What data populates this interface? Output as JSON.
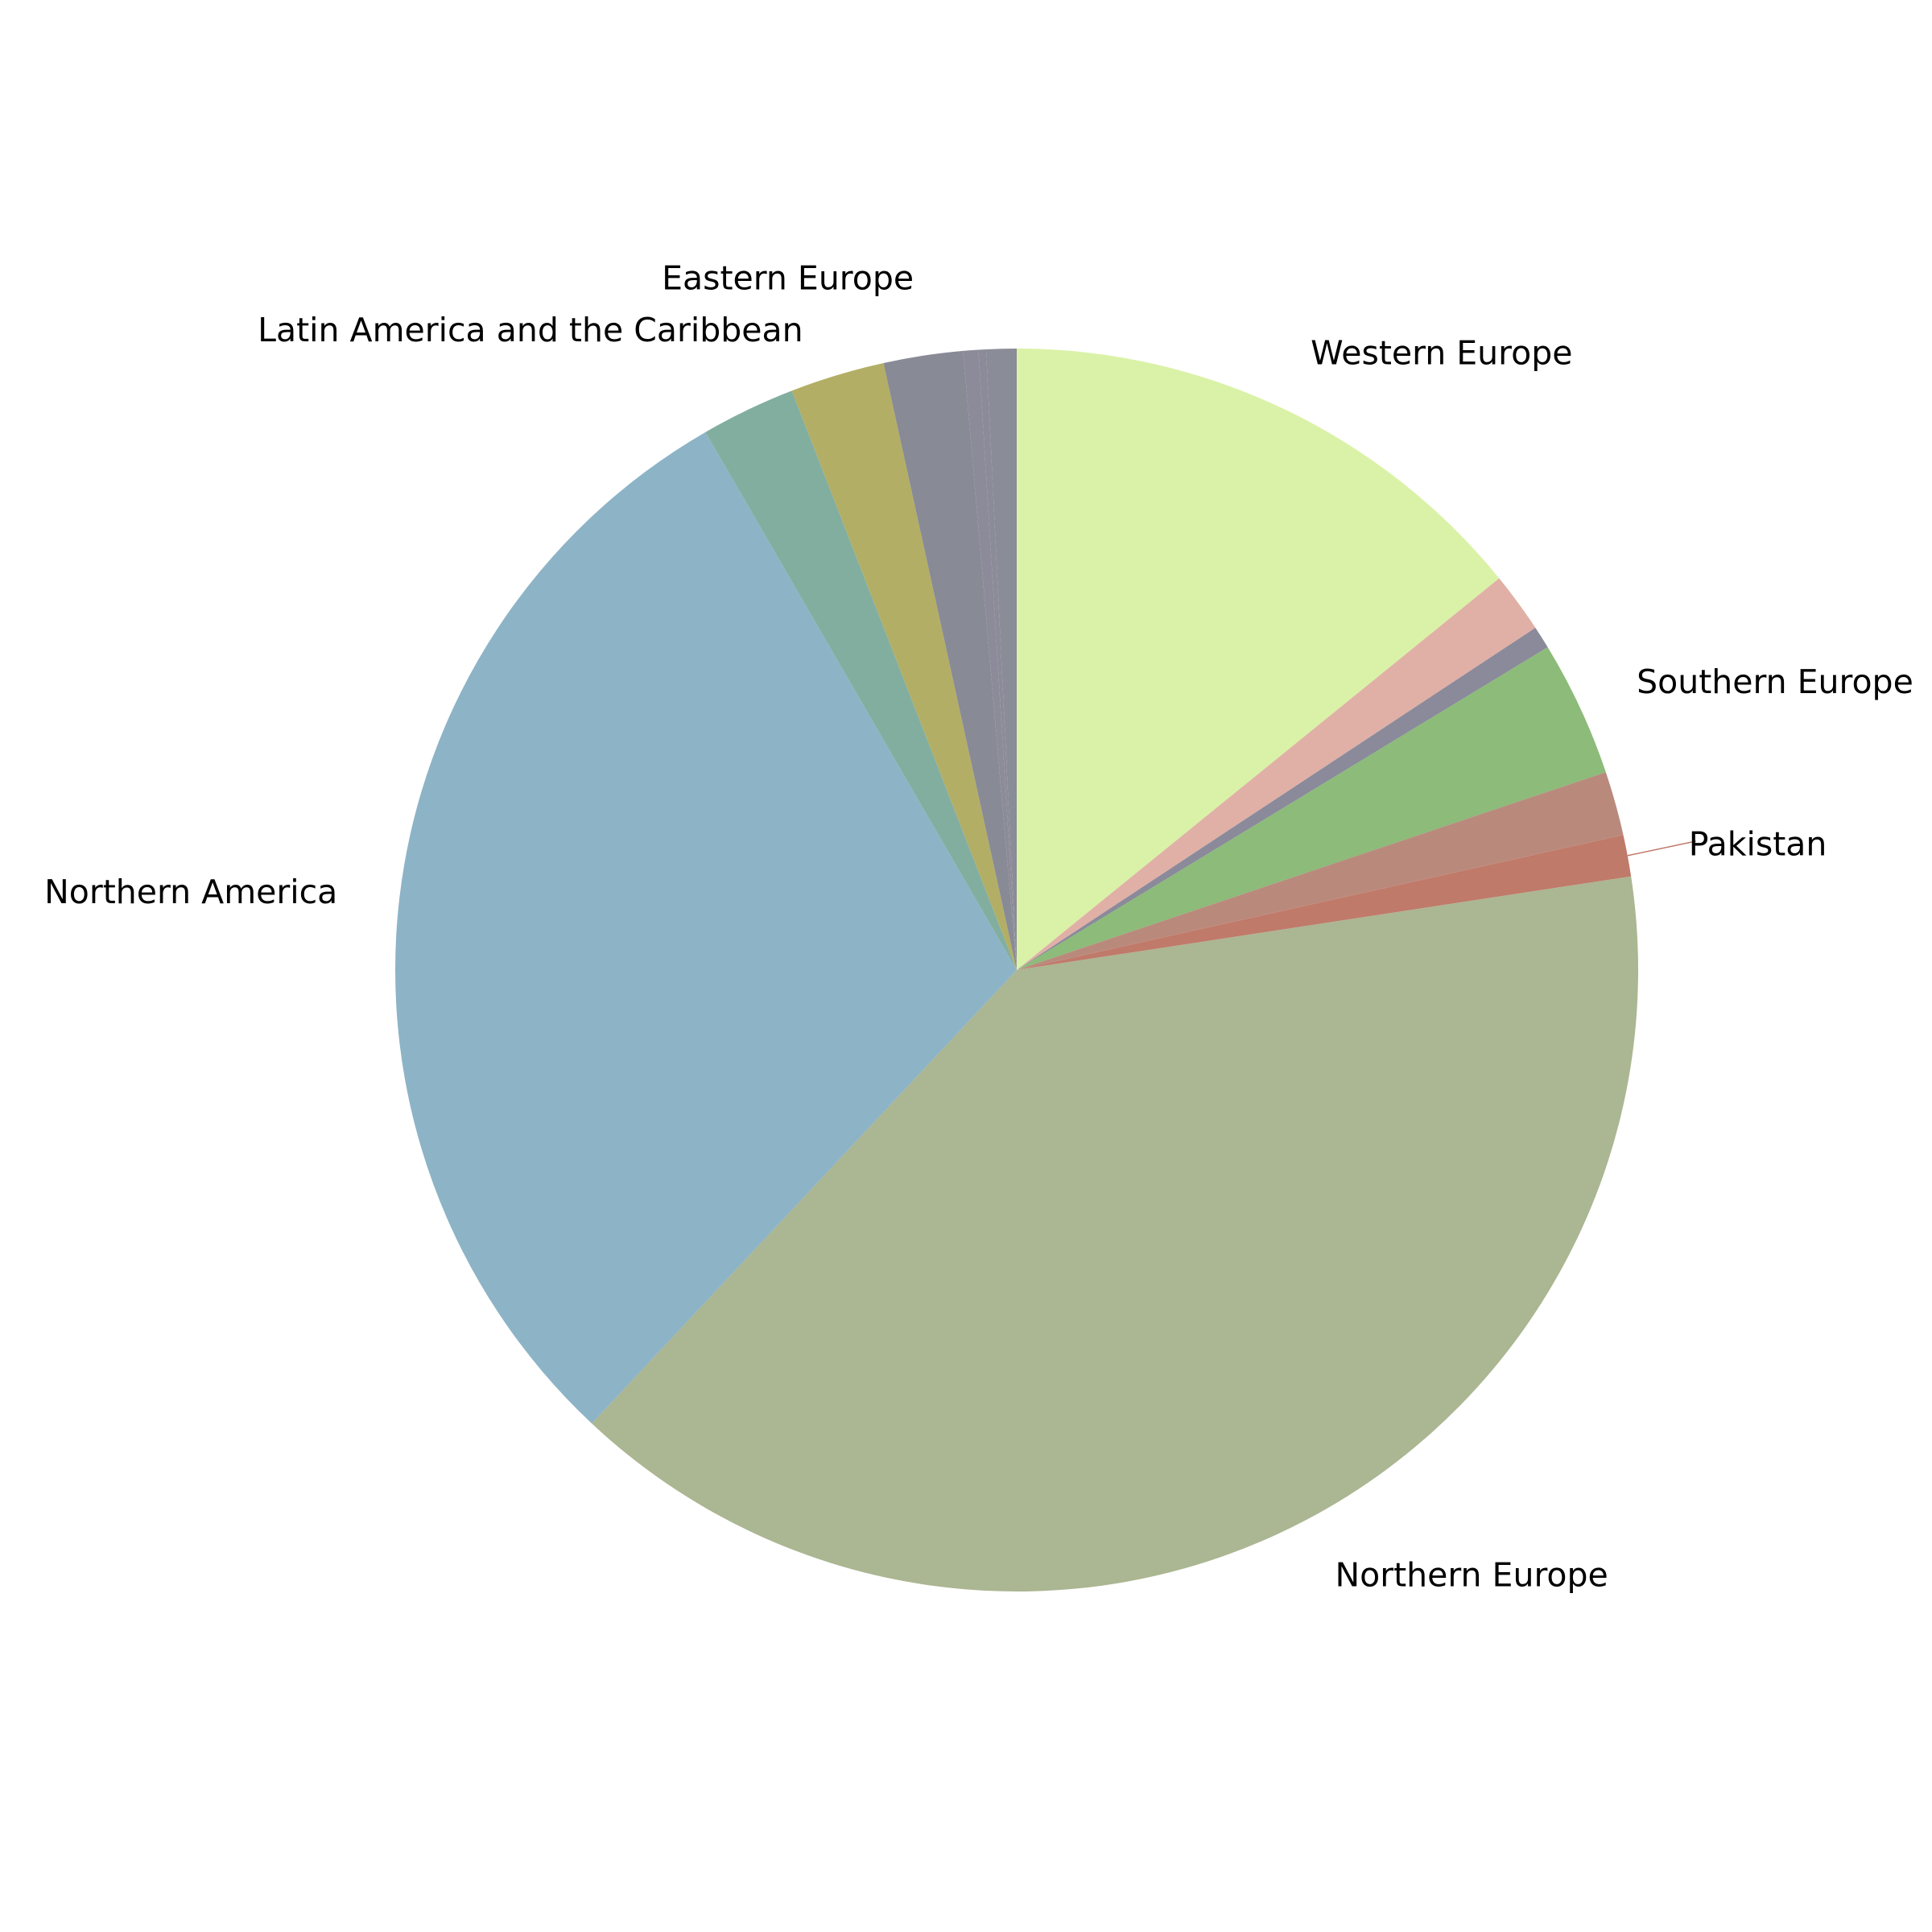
{
  "chart_data": {
    "type": "pie",
    "title": "",
    "start_angle_deg": 90,
    "direction": "clockwise",
    "legend": "none",
    "slices": [
      {
        "label": "Western Europe",
        "value": 14.4,
        "color": "#daf2a7",
        "show_label": true
      },
      {
        "label": "",
        "value": 1.6,
        "color": "#e0b0a6",
        "show_label": false
      },
      {
        "label": "",
        "value": 0.6,
        "color": "#8a8a9a",
        "show_label": false
      },
      {
        "label": "Southern Europe",
        "value": 3.6,
        "color": "#8cbb7a",
        "show_label": true
      },
      {
        "label": "",
        "value": 1.7,
        "color": "#b98a7c",
        "show_label": false
      },
      {
        "label": "Pakistan",
        "value": 1.1,
        "color": "#c07a6a",
        "show_label": true
      },
      {
        "label": "Northern Europe",
        "value": 40.1,
        "color": "#abb692",
        "show_label": true
      },
      {
        "label": "Northern America",
        "value": 30.2,
        "color": "#8db3c6",
        "show_label": true
      },
      {
        "label": "",
        "value": 2.5,
        "color": "#82ae9f",
        "show_label": false
      },
      {
        "label": "Latin America and the Caribbean",
        "value": 2.5,
        "color": "#b3ae66",
        "show_label": true
      },
      {
        "label": "Eastern Europe",
        "value": 2.1,
        "color": "#888a96",
        "show_label": true
      },
      {
        "label": "",
        "value": 0.4,
        "color": "#8b8b99",
        "show_label": false
      },
      {
        "label": "",
        "value": 0.2,
        "color": "#8b8b99",
        "show_label": false
      },
      {
        "label": "",
        "value": 0.8,
        "color": "#8a8c98",
        "show_label": false
      }
    ]
  }
}
